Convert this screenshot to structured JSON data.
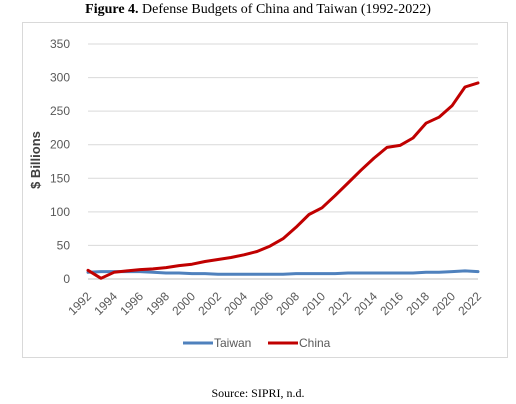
{
  "figure": {
    "label": "Figure 4.",
    "title": "Defense Budgets of China and Taiwan (1992-2022)"
  },
  "source": "Source: SIPRI, n.d.",
  "chart_data": {
    "type": "line",
    "title": "",
    "xlabel": "",
    "ylabel": "$ Billions",
    "ylim": [
      0,
      350
    ],
    "yticks": [
      0,
      50,
      100,
      150,
      200,
      250,
      300,
      350
    ],
    "x": [
      1992,
      1993,
      1994,
      1995,
      1996,
      1997,
      1998,
      1999,
      2000,
      2001,
      2002,
      2003,
      2004,
      2005,
      2006,
      2007,
      2008,
      2009,
      2010,
      2011,
      2012,
      2013,
      2014,
      2015,
      2016,
      2017,
      2018,
      2019,
      2020,
      2021,
      2022
    ],
    "xtick_labels": [
      "1992",
      "1994",
      "1996",
      "1998",
      "2000",
      "2002",
      "2004",
      "2006",
      "2008",
      "2010",
      "2012",
      "2014",
      "2016",
      "2018",
      "2020",
      "2022"
    ],
    "grid": true,
    "legend_position": "bottom",
    "series": [
      {
        "name": "Taiwan",
        "color": "#4f81bd",
        "values": [
          10,
          11,
          11,
          11,
          11,
          10,
          9,
          9,
          8,
          8,
          7,
          7,
          7,
          7,
          7,
          7,
          8,
          8,
          8,
          8,
          9,
          9,
          9,
          9,
          9,
          9,
          10,
          10,
          11,
          12,
          11
        ]
      },
      {
        "name": "China",
        "color": "#c00000",
        "values": [
          13,
          1,
          10,
          12,
          14,
          15,
          17,
          20,
          22,
          26,
          29,
          32,
          36,
          41,
          49,
          60,
          77,
          96,
          106,
          124,
          143,
          162,
          180,
          196,
          199,
          210,
          232,
          241,
          258,
          286,
          292
        ]
      }
    ]
  }
}
